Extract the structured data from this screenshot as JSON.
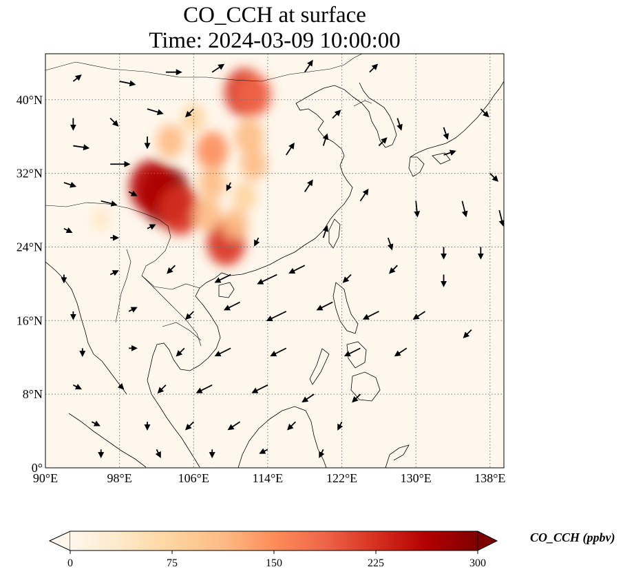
{
  "title": {
    "line1": "CO_CCH at surface",
    "line2": "Time: 2024-03-09 10:00:00"
  },
  "map": {
    "projection": "PlateCarree",
    "lon_range": [
      90,
      139.5
    ],
    "lat_range": [
      0,
      45
    ],
    "gridlines": "dotted",
    "lon_ticks": [
      {
        "value": 90,
        "label": "90°E"
      },
      {
        "value": 98,
        "label": "98°E"
      },
      {
        "value": 106,
        "label": "106°E"
      },
      {
        "value": 114,
        "label": "114°E"
      },
      {
        "value": 122,
        "label": "122°E"
      },
      {
        "value": 130,
        "label": "130°E"
      },
      {
        "value": 138,
        "label": "138°E"
      }
    ],
    "lat_ticks": [
      {
        "value": 0,
        "label": "0°"
      },
      {
        "value": 8,
        "label": "8°N"
      },
      {
        "value": 16,
        "label": "16°N"
      },
      {
        "value": 24,
        "label": "24°N"
      },
      {
        "value": 32,
        "label": "32°N"
      },
      {
        "value": 40,
        "label": "40°N"
      }
    ],
    "field_hotspots": [
      {
        "lon": 103.0,
        "lat": 29.5,
        "ppbv": 300
      },
      {
        "lon": 101.5,
        "lat": 30.5,
        "ppbv": 260
      },
      {
        "lon": 104.5,
        "lat": 28.0,
        "ppbv": 230
      },
      {
        "lon": 109.5,
        "lat": 24.5,
        "ppbv": 210
      },
      {
        "lon": 111.5,
        "lat": 40.8,
        "ppbv": 220
      },
      {
        "lon": 112.5,
        "lat": 40.5,
        "ppbv": 180
      },
      {
        "lon": 108.0,
        "lat": 34.5,
        "ppbv": 150
      },
      {
        "lon": 112.0,
        "lat": 36.0,
        "ppbv": 130
      },
      {
        "lon": 103.5,
        "lat": 35.5,
        "ppbv": 120
      },
      {
        "lon": 112.5,
        "lat": 33.0,
        "ppbv": 110
      },
      {
        "lon": 107.5,
        "lat": 27.5,
        "ppbv": 120
      },
      {
        "lon": 108.0,
        "lat": 31.0,
        "ppbv": 110
      },
      {
        "lon": 110.5,
        "lat": 26.5,
        "ppbv": 100
      },
      {
        "lon": 111.5,
        "lat": 29.5,
        "ppbv": 90
      },
      {
        "lon": 106.0,
        "lat": 38.0,
        "ppbv": 80
      },
      {
        "lon": 96.0,
        "lat": 27.0,
        "ppbv": 40
      }
    ],
    "wind_arrows": [
      {
        "lon": 93,
        "lat": 42,
        "u": 1,
        "v": 0.8
      },
      {
        "lon": 98,
        "lat": 42,
        "u": 2,
        "v": -0.4
      },
      {
        "lon": 103,
        "lat": 43,
        "u": 2,
        "v": 0
      },
      {
        "lon": 108,
        "lat": 43,
        "u": 1.5,
        "v": 1
      },
      {
        "lon": 118,
        "lat": 43,
        "u": 1,
        "v": 1.5
      },
      {
        "lon": 125,
        "lat": 43,
        "u": 1,
        "v": 1
      },
      {
        "lon": 93,
        "lat": 38,
        "u": 0,
        "v": -1.5
      },
      {
        "lon": 97,
        "lat": 38,
        "u": 1,
        "v": -1
      },
      {
        "lon": 101,
        "lat": 39,
        "u": 2,
        "v": -0.6
      },
      {
        "lon": 106,
        "lat": 39,
        "u": -1,
        "v": -1
      },
      {
        "lon": 121,
        "lat": 38,
        "u": 1,
        "v": 1
      },
      {
        "lon": 128,
        "lat": 38,
        "u": 0.5,
        "v": -1.5
      },
      {
        "lon": 133,
        "lat": 37,
        "u": 0.5,
        "v": -1.5
      },
      {
        "lon": 137,
        "lat": 39,
        "u": 1,
        "v": -1
      },
      {
        "lon": 93,
        "lat": 35,
        "u": 2,
        "v": -0.3
      },
      {
        "lon": 97,
        "lat": 33,
        "u": 2.5,
        "v": 0
      },
      {
        "lon": 101,
        "lat": 36,
        "u": 0,
        "v": -1.5
      },
      {
        "lon": 116,
        "lat": 34,
        "u": 1,
        "v": 1.5
      },
      {
        "lon": 120,
        "lat": 35,
        "u": 0.5,
        "v": 1.5
      },
      {
        "lon": 126,
        "lat": 35,
        "u": 1,
        "v": 1
      },
      {
        "lon": 133,
        "lat": 34,
        "u": 1.5,
        "v": 0.5
      },
      {
        "lon": 138,
        "lat": 32,
        "u": 1,
        "v": -1
      },
      {
        "lon": 92,
        "lat": 31,
        "u": 1.5,
        "v": -0.5
      },
      {
        "lon": 96,
        "lat": 29,
        "u": 2,
        "v": -0.5
      },
      {
        "lon": 99,
        "lat": 30,
        "u": 1,
        "v": -0.5
      },
      {
        "lon": 110,
        "lat": 31,
        "u": -0.5,
        "v": -1
      },
      {
        "lon": 118,
        "lat": 30,
        "u": 1,
        "v": 1.5
      },
      {
        "lon": 124,
        "lat": 29,
        "u": 1,
        "v": 1.5
      },
      {
        "lon": 130,
        "lat": 29,
        "u": 0.2,
        "v": -2
      },
      {
        "lon": 135,
        "lat": 29,
        "u": 0.5,
        "v": -2
      },
      {
        "lon": 139,
        "lat": 28,
        "u": 0.5,
        "v": -2
      },
      {
        "lon": 92,
        "lat": 26,
        "u": 1,
        "v": -0.5
      },
      {
        "lon": 97,
        "lat": 25,
        "u": 1,
        "v": 0
      },
      {
        "lon": 101,
        "lat": 26,
        "u": 1,
        "v": 0.5
      },
      {
        "lon": 113,
        "lat": 25,
        "u": -0.5,
        "v": -1
      },
      {
        "lon": 120,
        "lat": 25,
        "u": 0.5,
        "v": 1.5
      },
      {
        "lon": 127,
        "lat": 25,
        "u": 0.5,
        "v": -1.5
      },
      {
        "lon": 133,
        "lat": 24,
        "u": 0,
        "v": -1.5
      },
      {
        "lon": 137,
        "lat": 24,
        "u": 0,
        "v": -1.5
      },
      {
        "lon": 92,
        "lat": 21,
        "u": 0,
        "v": -1
      },
      {
        "lon": 97,
        "lat": 21,
        "u": 1,
        "v": 0.5
      },
      {
        "lon": 104,
        "lat": 22,
        "u": -1,
        "v": -1
      },
      {
        "lon": 110,
        "lat": 21,
        "u": -2,
        "v": -1
      },
      {
        "lon": 115,
        "lat": 21,
        "u": -2.5,
        "v": -1.2
      },
      {
        "lon": 118,
        "lat": 22,
        "u": -2,
        "v": -1
      },
      {
        "lon": 123,
        "lat": 21,
        "u": -1,
        "v": -1
      },
      {
        "lon": 128,
        "lat": 22,
        "u": -1,
        "v": -1
      },
      {
        "lon": 133,
        "lat": 21,
        "u": 0,
        "v": -1.5
      },
      {
        "lon": 93,
        "lat": 17,
        "u": 0,
        "v": -1
      },
      {
        "lon": 99,
        "lat": 17,
        "u": 1,
        "v": 0.5
      },
      {
        "lon": 106,
        "lat": 17,
        "u": -1,
        "v": -1
      },
      {
        "lon": 111,
        "lat": 18,
        "u": -2,
        "v": -1
      },
      {
        "lon": 116,
        "lat": 17,
        "u": -2.5,
        "v": -1.2
      },
      {
        "lon": 121,
        "lat": 18,
        "u": -2,
        "v": -1
      },
      {
        "lon": 126,
        "lat": 17,
        "u": -2,
        "v": -1
      },
      {
        "lon": 131,
        "lat": 17,
        "u": -1.5,
        "v": -1
      },
      {
        "lon": 136,
        "lat": 15,
        "u": -1,
        "v": -1
      },
      {
        "lon": 94,
        "lat": 13,
        "u": 0,
        "v": -1
      },
      {
        "lon": 99,
        "lat": 13,
        "u": 1,
        "v": 0
      },
      {
        "lon": 105,
        "lat": 13,
        "u": -1,
        "v": -1
      },
      {
        "lon": 110,
        "lat": 13,
        "u": -2,
        "v": -1
      },
      {
        "lon": 116,
        "lat": 13,
        "u": -2,
        "v": -1
      },
      {
        "lon": 124,
        "lat": 13,
        "u": -2,
        "v": -1
      },
      {
        "lon": 129,
        "lat": 13,
        "u": -1.5,
        "v": -1
      },
      {
        "lon": 93,
        "lat": 9,
        "u": 1,
        "v": -0.5
      },
      {
        "lon": 98,
        "lat": 9,
        "u": 0.5,
        "v": -0.5
      },
      {
        "lon": 103,
        "lat": 9,
        "u": -1,
        "v": -1
      },
      {
        "lon": 108,
        "lat": 9,
        "u": -2,
        "v": -1
      },
      {
        "lon": 114,
        "lat": 9,
        "u": -2,
        "v": -1
      },
      {
        "lon": 119,
        "lat": 8,
        "u": -1.5,
        "v": -1
      },
      {
        "lon": 124,
        "lat": 8,
        "u": -1,
        "v": -1
      },
      {
        "lon": 95,
        "lat": 5,
        "u": 1,
        "v": -0.5
      },
      {
        "lon": 101,
        "lat": 5,
        "u": 0,
        "v": -1
      },
      {
        "lon": 106,
        "lat": 5,
        "u": -1,
        "v": -1
      },
      {
        "lon": 111,
        "lat": 5,
        "u": -1.5,
        "v": -1
      },
      {
        "lon": 117,
        "lat": 5,
        "u": -1,
        "v": -1
      },
      {
        "lon": 122,
        "lat": 5,
        "u": -0.5,
        "v": -1
      },
      {
        "lon": 96,
        "lat": 2,
        "u": 0,
        "v": -1
      },
      {
        "lon": 102,
        "lat": 2,
        "u": 0.5,
        "v": -1
      },
      {
        "lon": 108,
        "lat": 2,
        "u": 0,
        "v": -1
      },
      {
        "lon": 114,
        "lat": 2,
        "u": -1,
        "v": -0.5
      },
      {
        "lon": 120,
        "lat": 2,
        "u": -0.5,
        "v": -1
      }
    ]
  },
  "colorbar": {
    "colormap": "OrRd",
    "colors": [
      "#fff7ec",
      "#fee8c8",
      "#fdd49e",
      "#fdbb84",
      "#fc8d59",
      "#ef6548",
      "#d7301f",
      "#b30000",
      "#7f0000"
    ],
    "min": 0,
    "max": 300,
    "extend": "both",
    "ticks": [
      {
        "value": 0,
        "label": "0"
      },
      {
        "value": 75,
        "label": "75"
      },
      {
        "value": 150,
        "label": "150"
      },
      {
        "value": 225,
        "label": "225"
      },
      {
        "value": 300,
        "label": "300"
      }
    ],
    "label": "CO_CCH (ppbv)"
  }
}
